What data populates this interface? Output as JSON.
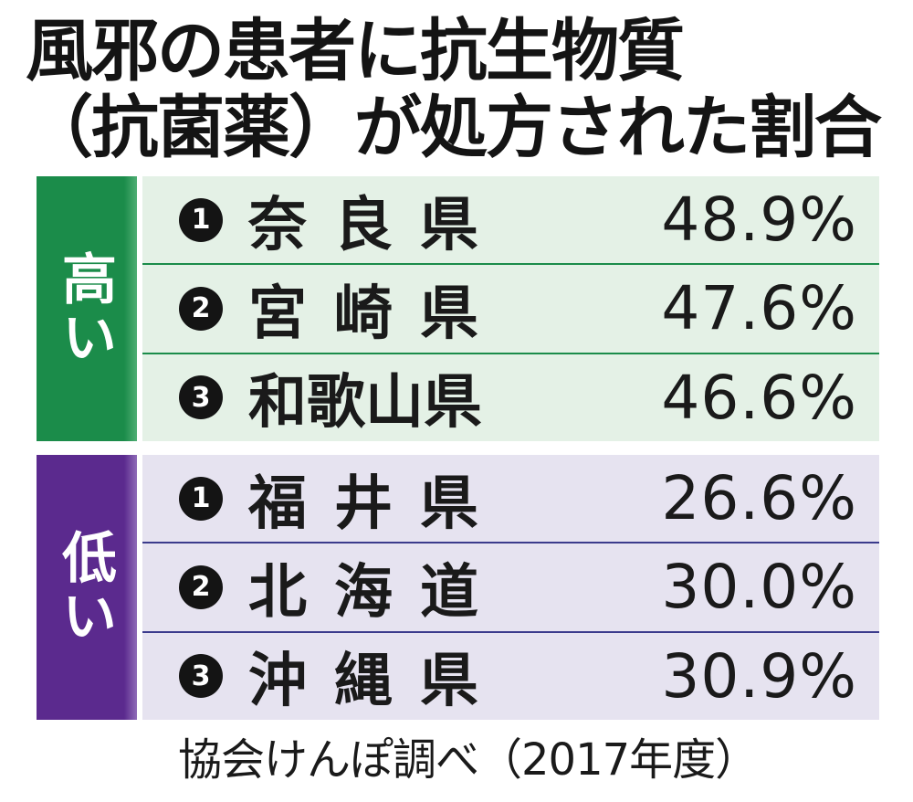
{
  "title": {
    "line1": "風邪の患者に抗生物質",
    "line2": "（抗菌薬）が処方された割合"
  },
  "chart_data": {
    "type": "table",
    "groups": [
      {
        "label": "高い",
        "color": "#1b8c4a",
        "rows": [
          {
            "rank": "1",
            "prefecture": "奈良県",
            "value": 48.9,
            "display": "48.9%"
          },
          {
            "rank": "2",
            "prefecture": "宮崎県",
            "value": 47.6,
            "display": "47.6%"
          },
          {
            "rank": "3",
            "prefecture": "和歌山県",
            "value": 46.6,
            "display": "46.6%"
          }
        ]
      },
      {
        "label": "低い",
        "color": "#5b2a8e",
        "rows": [
          {
            "rank": "1",
            "prefecture": "福井県",
            "value": 26.6,
            "display": "26.6%"
          },
          {
            "rank": "2",
            "prefecture": "北海道",
            "value": 30.0,
            "display": "30.0%"
          },
          {
            "rank": "3",
            "prefecture": "沖縄県",
            "value": 30.9,
            "display": "30.9%"
          }
        ]
      }
    ]
  },
  "source": "協会けんぽ調べ（2017年度）"
}
